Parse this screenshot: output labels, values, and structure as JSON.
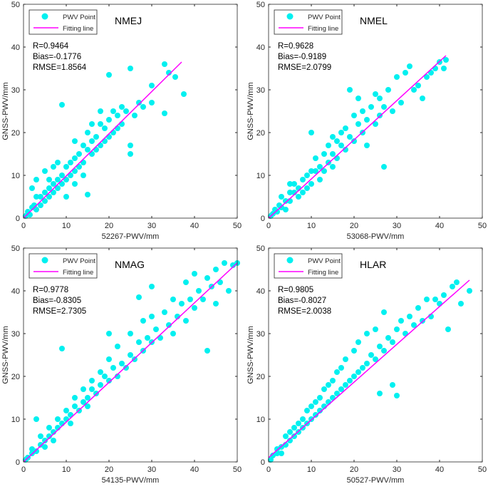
{
  "colors": {
    "points": "#00f0f0",
    "line": "#ff00ff",
    "axis": "#262626"
  },
  "chart_data": [
    {
      "type": "scatter",
      "title": "NMEJ",
      "xlabel": "52267-PWV/mm",
      "ylabel": "GNSS-PWV/mm",
      "xlim": [
        0,
        50
      ],
      "ylim": [
        0,
        50
      ],
      "ticks": [
        "0",
        "10",
        "20",
        "30",
        "40",
        "50"
      ],
      "legend": {
        "position": "top-left",
        "entries": [
          "PWV Point",
          "Fitting line"
        ]
      },
      "stats": [
        "R=0.9464",
        "Bias=-0.1776",
        "RMSE=1.8564"
      ],
      "fit_line": [
        [
          0,
          0
        ],
        [
          37,
          36.5
        ]
      ],
      "points": [
        [
          0.5,
          0.5
        ],
        [
          1,
          1.5
        ],
        [
          1.5,
          0.8
        ],
        [
          2,
          2.5
        ],
        [
          2.5,
          3
        ],
        [
          3,
          2
        ],
        [
          3,
          9
        ],
        [
          2,
          7
        ],
        [
          4,
          5
        ],
        [
          4,
          3
        ],
        [
          5,
          6
        ],
        [
          5,
          4
        ],
        [
          6,
          7
        ],
        [
          6,
          5
        ],
        [
          7,
          8
        ],
        [
          7,
          6
        ],
        [
          8,
          9
        ],
        [
          8,
          7
        ],
        [
          9,
          10
        ],
        [
          9,
          8
        ],
        [
          9,
          26.5
        ],
        [
          10,
          12
        ],
        [
          10,
          9
        ],
        [
          11,
          13
        ],
        [
          11,
          10
        ],
        [
          12,
          14
        ],
        [
          12,
          11
        ],
        [
          13,
          15
        ],
        [
          13,
          12
        ],
        [
          14,
          17
        ],
        [
          14,
          13
        ],
        [
          15,
          16
        ],
        [
          15,
          5.5
        ],
        [
          15,
          20
        ],
        [
          16,
          18
        ],
        [
          16,
          15
        ],
        [
          17,
          19
        ],
        [
          17,
          16
        ],
        [
          18,
          22
        ],
        [
          18,
          17
        ],
        [
          19,
          21
        ],
        [
          19,
          18
        ],
        [
          20,
          23
        ],
        [
          20,
          19
        ],
        [
          20,
          33.5
        ],
        [
          21,
          25
        ],
        [
          21,
          20
        ],
        [
          22,
          24
        ],
        [
          22,
          21
        ],
        [
          23,
          26
        ],
        [
          23,
          22
        ],
        [
          24,
          25
        ],
        [
          25,
          35
        ],
        [
          25,
          15
        ],
        [
          25,
          17
        ],
        [
          26,
          24
        ],
        [
          27,
          27
        ],
        [
          28,
          26
        ],
        [
          30,
          27
        ],
        [
          30,
          31
        ],
        [
          33,
          24.5
        ],
        [
          33,
          36
        ],
        [
          34,
          34
        ],
        [
          35.5,
          33
        ],
        [
          37.5,
          29
        ],
        [
          5,
          11
        ],
        [
          7,
          12
        ],
        [
          3,
          5
        ],
        [
          6,
          9
        ],
        [
          8,
          13
        ],
        [
          12,
          18
        ],
        [
          16,
          22
        ],
        [
          18,
          25
        ],
        [
          10,
          5
        ],
        [
          12,
          8
        ],
        [
          14,
          10
        ]
      ]
    },
    {
      "type": "scatter",
      "title": "NMEL",
      "xlabel": "53068-PWV/mm",
      "ylabel": "GNSS-PWV/mm",
      "xlim": [
        0,
        50
      ],
      "ylim": [
        0,
        50
      ],
      "ticks": [
        "0",
        "10",
        "20",
        "30",
        "40",
        "50"
      ],
      "legend": {
        "position": "top-left",
        "entries": [
          "PWV Point",
          "Fitting line"
        ]
      },
      "stats": [
        "R=0.9628",
        "Bias=-0.9189",
        "RMSE=2.0799"
      ],
      "fit_line": [
        [
          0,
          0
        ],
        [
          41.5,
          38
        ]
      ],
      "points": [
        [
          0.5,
          0.5
        ],
        [
          1,
          1
        ],
        [
          1.5,
          2
        ],
        [
          2,
          1.5
        ],
        [
          2.5,
          3
        ],
        [
          3,
          2.5
        ],
        [
          3,
          5
        ],
        [
          4,
          4
        ],
        [
          4,
          2
        ],
        [
          5,
          6
        ],
        [
          5,
          4
        ],
        [
          6,
          6
        ],
        [
          6,
          8
        ],
        [
          7,
          7
        ],
        [
          7,
          5
        ],
        [
          8,
          9
        ],
        [
          8,
          6
        ],
        [
          9,
          10
        ],
        [
          9,
          7
        ],
        [
          10,
          11
        ],
        [
          10,
          8
        ],
        [
          11,
          11
        ],
        [
          11,
          14
        ],
        [
          12,
          12
        ],
        [
          12,
          9
        ],
        [
          13,
          15
        ],
        [
          13,
          11
        ],
        [
          14,
          13
        ],
        [
          14,
          17
        ],
        [
          15,
          15
        ],
        [
          15,
          12
        ],
        [
          16,
          18
        ],
        [
          16,
          14
        ],
        [
          17,
          17
        ],
        [
          17,
          20
        ],
        [
          18,
          16
        ],
        [
          18,
          21
        ],
        [
          19,
          19
        ],
        [
          19,
          30
        ],
        [
          20,
          18
        ],
        [
          20,
          24
        ],
        [
          21,
          22
        ],
        [
          21,
          28
        ],
        [
          22,
          20
        ],
        [
          22,
          25
        ],
        [
          23,
          23
        ],
        [
          23,
          17
        ],
        [
          24,
          26
        ],
        [
          25,
          22
        ],
        [
          25,
          29
        ],
        [
          26,
          24
        ],
        [
          26,
          28
        ],
        [
          27,
          26
        ],
        [
          27,
          12
        ],
        [
          28,
          30
        ],
        [
          29,
          25
        ],
        [
          30,
          33
        ],
        [
          31,
          27
        ],
        [
          32,
          34
        ],
        [
          33,
          35.5
        ],
        [
          34,
          30
        ],
        [
          35,
          31
        ],
        [
          36,
          28
        ],
        [
          37,
          33
        ],
        [
          38,
          34
        ],
        [
          39,
          35
        ],
        [
          40,
          36.5
        ],
        [
          41,
          35
        ],
        [
          41.5,
          37
        ],
        [
          10,
          20
        ],
        [
          15,
          19
        ],
        [
          5,
          8
        ]
      ]
    },
    {
      "type": "scatter",
      "title": "NMAG",
      "xlabel": "54135-PWV/mm",
      "ylabel": "GNSS-PWV/mm",
      "xlim": [
        0,
        50
      ],
      "ylim": [
        0,
        50
      ],
      "ticks": [
        "0",
        "10",
        "20",
        "30",
        "40",
        "50"
      ],
      "legend": {
        "position": "top-left",
        "entries": [
          "PWV Point",
          "Fitting line"
        ]
      },
      "stats": [
        "R=0.9778",
        "Bias=-0.8305",
        "RMSE=2.7305"
      ],
      "fit_line": [
        [
          0,
          0
        ],
        [
          50,
          46.5
        ]
      ],
      "points": [
        [
          0.5,
          0.5
        ],
        [
          1,
          1
        ],
        [
          2,
          2
        ],
        [
          2,
          3
        ],
        [
          3,
          2.5
        ],
        [
          3,
          10
        ],
        [
          4,
          4
        ],
        [
          4,
          6
        ],
        [
          5,
          5
        ],
        [
          5,
          3.5
        ],
        [
          6,
          6
        ],
        [
          6,
          8
        ],
        [
          7,
          7
        ],
        [
          7,
          5
        ],
        [
          8,
          8
        ],
        [
          8,
          10
        ],
        [
          9,
          9
        ],
        [
          9,
          26.5
        ],
        [
          10,
          10
        ],
        [
          10,
          12
        ],
        [
          11,
          11
        ],
        [
          11,
          9
        ],
        [
          12,
          13
        ],
        [
          12,
          15
        ],
        [
          13,
          12
        ],
        [
          14,
          14
        ],
        [
          14,
          17
        ],
        [
          15,
          15
        ],
        [
          15,
          13
        ],
        [
          16,
          17
        ],
        [
          16,
          19
        ],
        [
          17,
          16
        ],
        [
          18,
          18
        ],
        [
          18,
          21
        ],
        [
          19,
          20
        ],
        [
          20,
          19
        ],
        [
          20,
          24
        ],
        [
          21,
          22
        ],
        [
          22,
          20
        ],
        [
          22,
          27
        ],
        [
          23,
          23
        ],
        [
          24,
          22
        ],
        [
          25,
          25
        ],
        [
          25,
          30
        ],
        [
          26,
          24
        ],
        [
          27,
          28
        ],
        [
          28,
          26
        ],
        [
          28,
          33
        ],
        [
          29,
          29
        ],
        [
          30,
          28
        ],
        [
          30,
          34
        ],
        [
          31,
          31
        ],
        [
          32,
          29
        ],
        [
          33,
          35
        ],
        [
          34,
          32
        ],
        [
          35,
          38
        ],
        [
          35,
          30
        ],
        [
          36,
          34
        ],
        [
          37,
          37
        ],
        [
          38,
          33
        ],
        [
          38,
          42
        ],
        [
          39,
          38
        ],
        [
          40,
          36
        ],
        [
          40,
          44
        ],
        [
          41,
          40
        ],
        [
          42,
          38
        ],
        [
          43,
          26
        ],
        [
          43,
          43
        ],
        [
          44,
          41
        ],
        [
          45,
          45
        ],
        [
          45,
          37
        ],
        [
          46,
          42
        ],
        [
          47,
          46.5
        ],
        [
          48,
          40
        ],
        [
          49,
          46
        ],
        [
          50,
          46.5
        ],
        [
          27,
          38.5
        ],
        [
          30,
          41
        ],
        [
          20,
          30
        ]
      ]
    },
    {
      "type": "scatter",
      "title": "HLAR",
      "xlabel": "50527-PWV/mm",
      "ylabel": "GNSS-PWV/mm",
      "xlim": [
        0,
        50
      ],
      "ylim": [
        0,
        50
      ],
      "ticks": [
        "0",
        "10",
        "20",
        "30",
        "40",
        "50"
      ],
      "legend": {
        "position": "top-left",
        "entries": [
          "PWV Point",
          "Fitting line"
        ]
      },
      "stats": [
        "R=0.9805",
        "Bias=-0.8027",
        "RMSE=2.0038"
      ],
      "fit_line": [
        [
          0,
          1
        ],
        [
          47,
          42.5
        ]
      ],
      "points": [
        [
          0.5,
          0.5
        ],
        [
          1,
          1.5
        ],
        [
          2,
          2
        ],
        [
          2,
          3
        ],
        [
          3,
          3.5
        ],
        [
          3,
          2
        ],
        [
          4,
          4
        ],
        [
          4,
          6
        ],
        [
          5,
          5
        ],
        [
          5,
          7
        ],
        [
          6,
          6
        ],
        [
          6,
          8
        ],
        [
          7,
          7
        ],
        [
          7,
          9
        ],
        [
          8,
          8
        ],
        [
          8,
          10
        ],
        [
          9,
          9
        ],
        [
          9,
          12
        ],
        [
          10,
          10
        ],
        [
          10,
          13
        ],
        [
          11,
          11
        ],
        [
          11,
          14
        ],
        [
          12,
          12
        ],
        [
          12,
          15
        ],
        [
          13,
          13
        ],
        [
          13,
          17
        ],
        [
          14,
          14
        ],
        [
          14,
          18
        ],
        [
          15,
          15
        ],
        [
          15,
          19
        ],
        [
          16,
          16
        ],
        [
          16,
          21
        ],
        [
          17,
          17
        ],
        [
          17,
          22
        ],
        [
          18,
          18
        ],
        [
          18,
          24
        ],
        [
          19,
          19
        ],
        [
          20,
          20
        ],
        [
          20,
          26
        ],
        [
          21,
          21
        ],
        [
          21,
          28
        ],
        [
          22,
          22
        ],
        [
          23,
          23
        ],
        [
          23,
          30
        ],
        [
          24,
          25
        ],
        [
          25,
          24
        ],
        [
          25,
          31
        ],
        [
          26,
          27
        ],
        [
          27,
          26
        ],
        [
          27,
          35
        ],
        [
          28,
          29
        ],
        [
          29,
          28
        ],
        [
          30,
          31
        ],
        [
          30,
          15.5
        ],
        [
          31,
          33
        ],
        [
          32,
          30
        ],
        [
          33,
          34
        ],
        [
          34,
          32
        ],
        [
          35,
          36
        ],
        [
          36,
          33
        ],
        [
          37,
          38
        ],
        [
          38,
          34
        ],
        [
          39,
          38
        ],
        [
          40,
          37
        ],
        [
          41,
          39
        ],
        [
          42,
          31
        ],
        [
          43,
          41
        ],
        [
          44,
          42
        ],
        [
          45,
          37
        ],
        [
          47,
          40
        ],
        [
          26,
          16
        ],
        [
          29,
          18
        ]
      ]
    }
  ]
}
